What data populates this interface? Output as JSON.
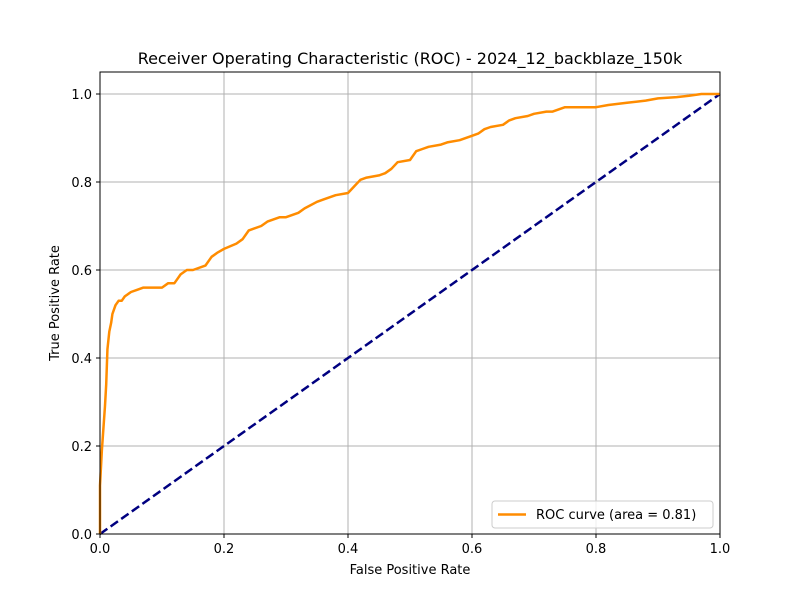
{
  "chart_data": {
    "type": "line",
    "title": "Receiver Operating Characteristic (ROC) - 2024_12_backblaze_150k",
    "xlabel": "False Positive Rate",
    "ylabel": "True Positive Rate",
    "xlim": [
      0.0,
      1.0
    ],
    "ylim": [
      0.0,
      1.05
    ],
    "xticks": [
      "0.0",
      "0.2",
      "0.4",
      "0.6",
      "0.8",
      "1.0"
    ],
    "yticks": [
      "0.0",
      "0.2",
      "0.4",
      "0.6",
      "0.8",
      "1.0"
    ],
    "grid": true,
    "legend_position": "lower right",
    "series": [
      {
        "name": "ROC curve (area = 0.81)",
        "color": "#ff8c00",
        "style": "solid",
        "x": [
          0.0,
          0.0,
          0.003,
          0.005,
          0.008,
          0.01,
          0.012,
          0.015,
          0.018,
          0.02,
          0.025,
          0.03,
          0.035,
          0.04,
          0.05,
          0.06,
          0.07,
          0.08,
          0.09,
          0.1,
          0.11,
          0.12,
          0.125,
          0.13,
          0.14,
          0.15,
          0.17,
          0.18,
          0.19,
          0.2,
          0.22,
          0.23,
          0.24,
          0.26,
          0.27,
          0.29,
          0.3,
          0.32,
          0.33,
          0.35,
          0.36,
          0.38,
          0.4,
          0.41,
          0.42,
          0.43,
          0.45,
          0.46,
          0.47,
          0.48,
          0.5,
          0.51,
          0.52,
          0.53,
          0.55,
          0.56,
          0.58,
          0.6,
          0.61,
          0.62,
          0.63,
          0.65,
          0.66,
          0.67,
          0.69,
          0.7,
          0.72,
          0.73,
          0.75,
          0.8,
          0.82,
          0.85,
          0.88,
          0.9,
          0.93,
          0.95,
          0.97,
          1.0
        ],
        "y": [
          0.0,
          0.11,
          0.19,
          0.23,
          0.29,
          0.34,
          0.42,
          0.46,
          0.48,
          0.5,
          0.52,
          0.53,
          0.53,
          0.54,
          0.55,
          0.555,
          0.56,
          0.56,
          0.56,
          0.56,
          0.57,
          0.57,
          0.58,
          0.59,
          0.6,
          0.6,
          0.61,
          0.63,
          0.64,
          0.648,
          0.66,
          0.67,
          0.69,
          0.7,
          0.71,
          0.72,
          0.72,
          0.73,
          0.74,
          0.755,
          0.76,
          0.77,
          0.775,
          0.79,
          0.805,
          0.81,
          0.815,
          0.82,
          0.83,
          0.845,
          0.85,
          0.87,
          0.875,
          0.88,
          0.885,
          0.89,
          0.895,
          0.905,
          0.91,
          0.92,
          0.925,
          0.93,
          0.94,
          0.945,
          0.95,
          0.955,
          0.96,
          0.96,
          0.97,
          0.97,
          0.975,
          0.98,
          0.985,
          0.99,
          0.993,
          0.996,
          1.0,
          1.0
        ]
      },
      {
        "name": "",
        "color": "#000080",
        "style": "dashed",
        "x": [
          0.0,
          1.0
        ],
        "y": [
          0.0,
          1.0
        ]
      }
    ]
  }
}
